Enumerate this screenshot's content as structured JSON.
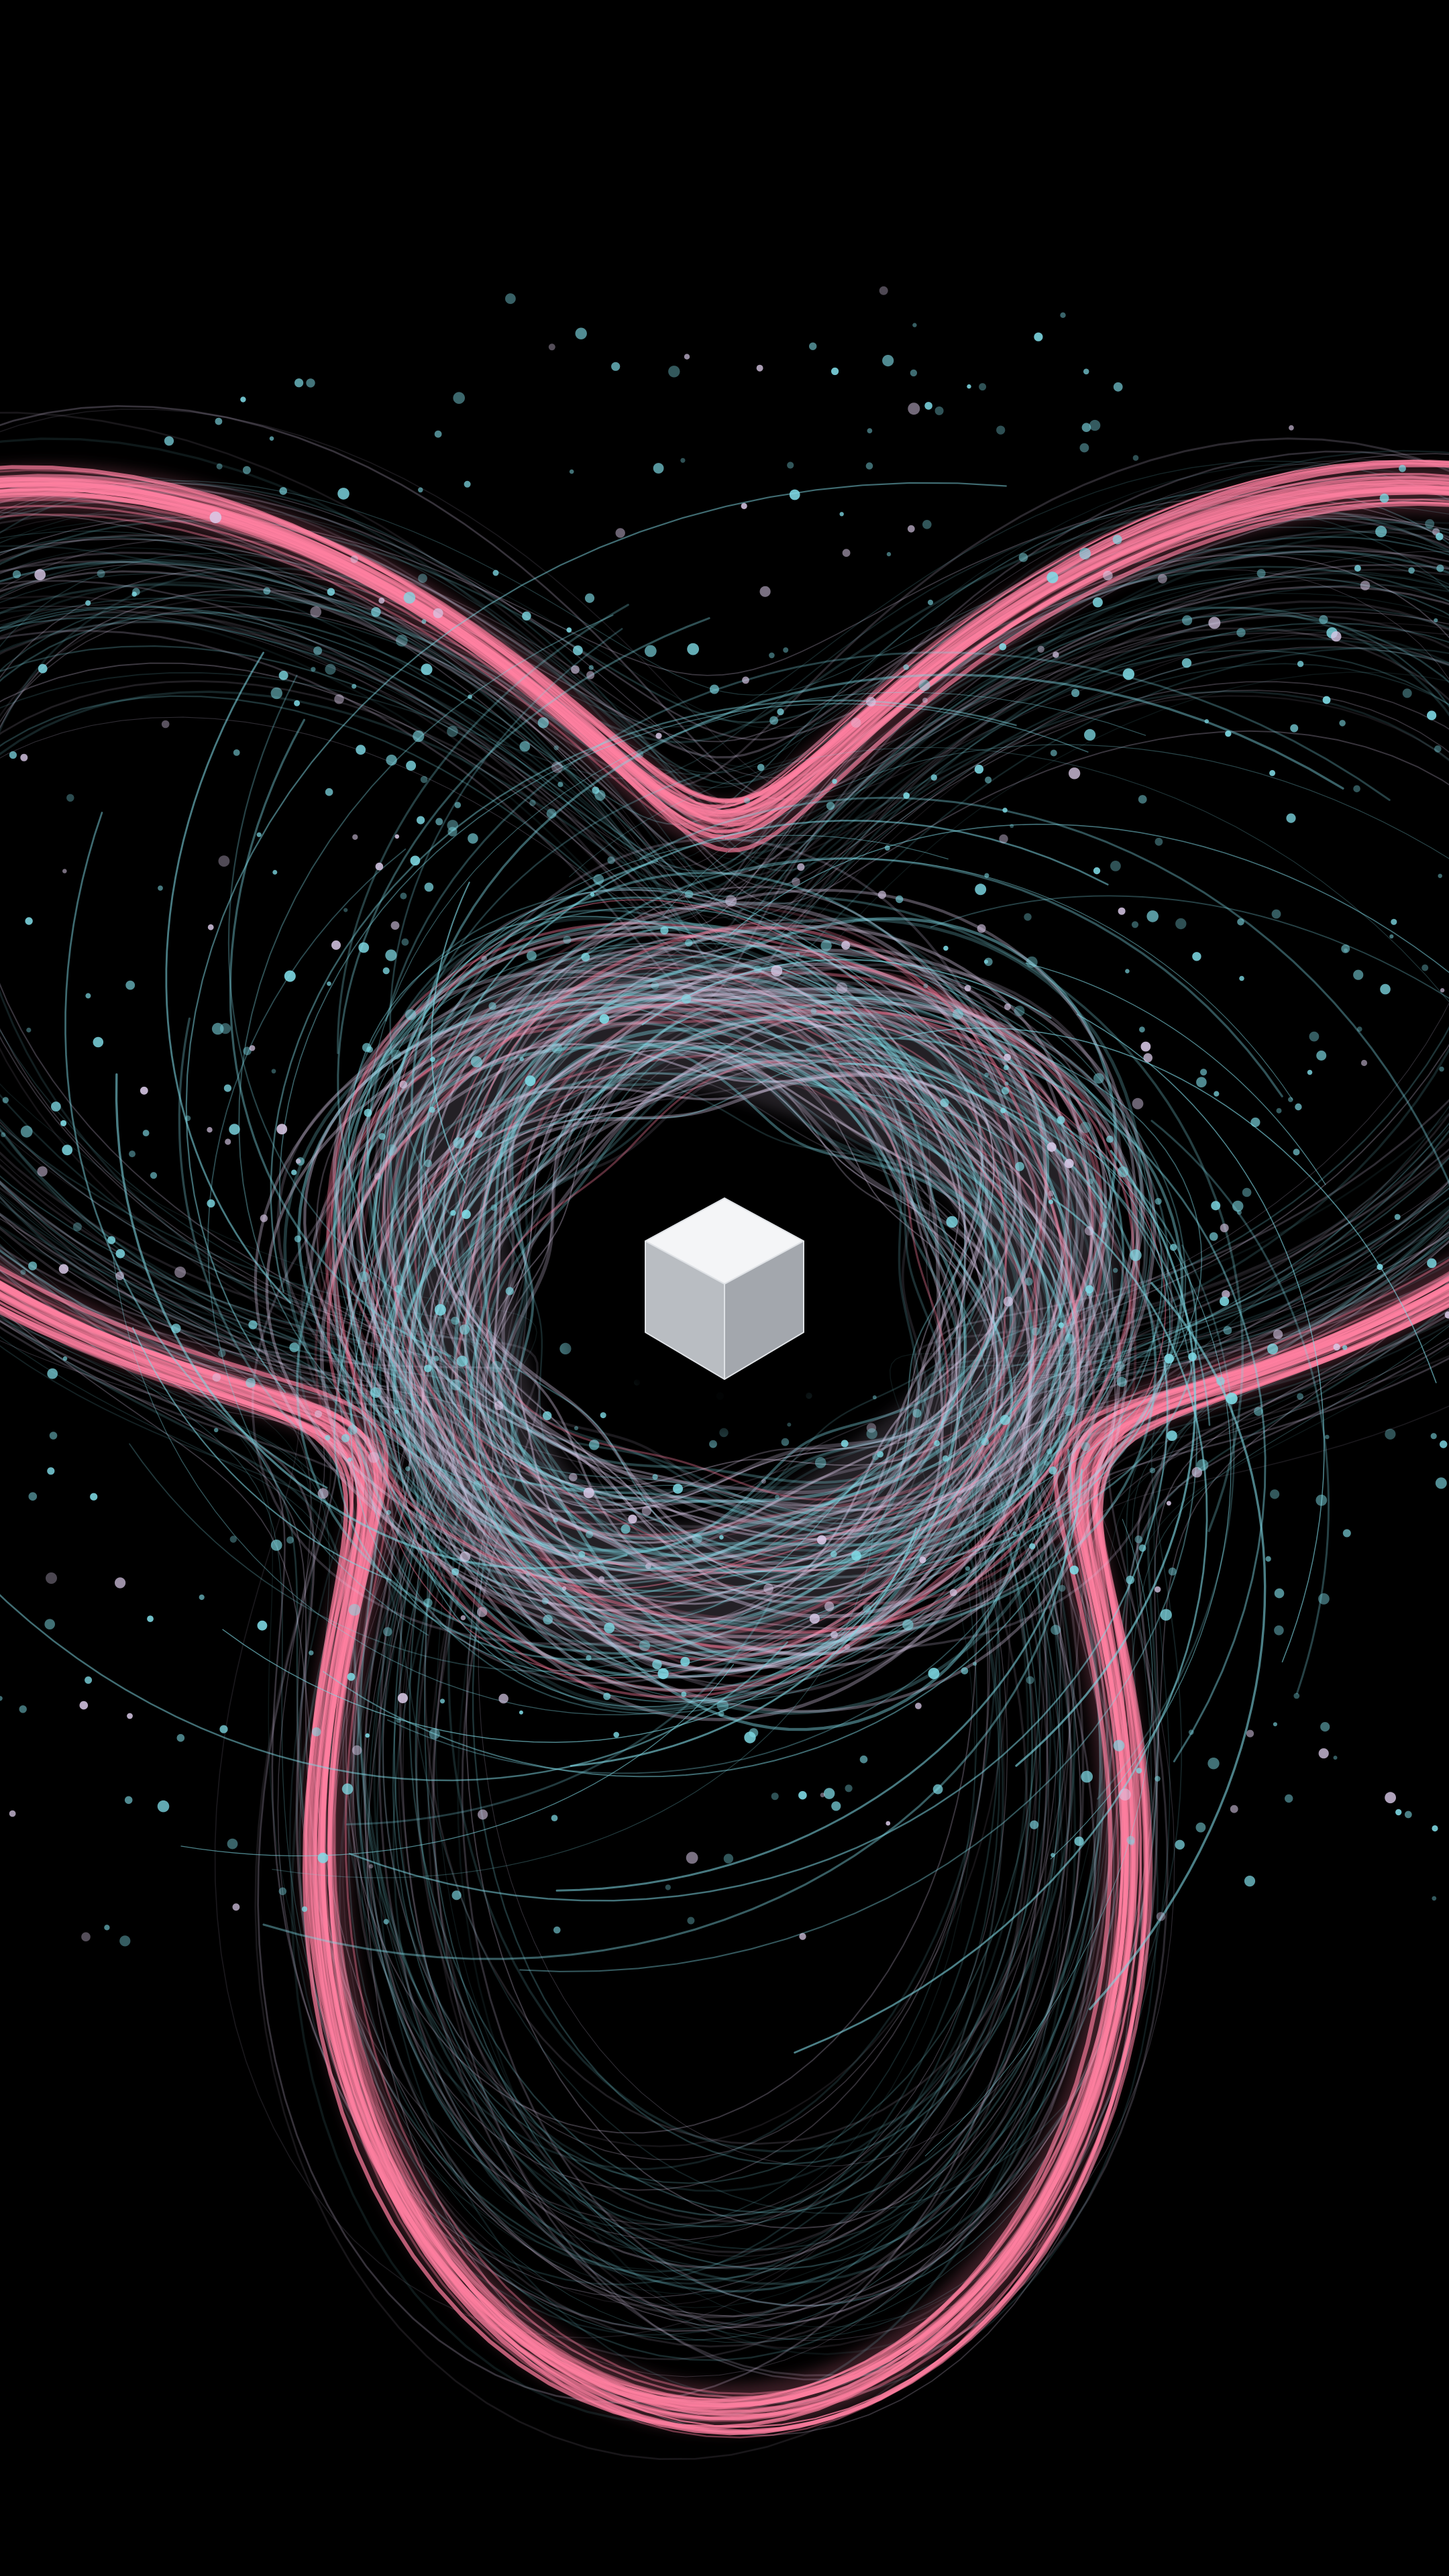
{
  "scene": {
    "subject": "glowing-cube-with-swirling-light-trails",
    "colors": {
      "background": "#000000",
      "outer_ribbon": "#ff7fa0",
      "inner_ring": "#d8c8e6",
      "cyan_trail": "#7fd8e4",
      "particle": "#7fdbe6",
      "cube_top": "#f4f5f7",
      "cube_left": "#b9bdc2",
      "cube_right": "#a3a7ad",
      "cube_edge": "#dfe2e6"
    }
  }
}
